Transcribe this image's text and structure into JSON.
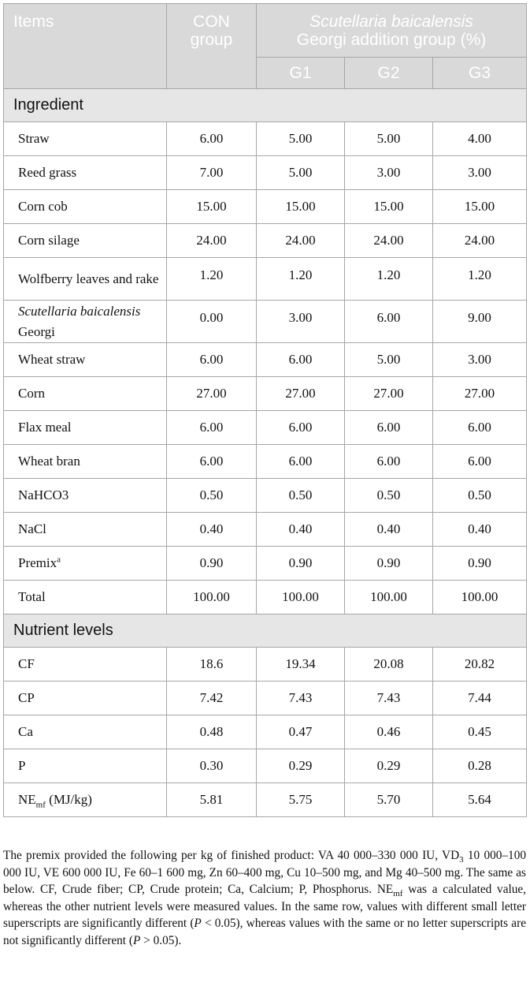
{
  "header": {
    "items": "Items",
    "con_group": "CON group",
    "addition_group_italic": "Scutellaria baicalensis",
    "addition_group_rest": "Georgi addition group (%)",
    "g1": "G1",
    "g2": "G2",
    "g3": "G3"
  },
  "sections": {
    "ingredient": "Ingredient",
    "nutrient": "Nutrient levels"
  },
  "ingredients": [
    {
      "label": "Straw",
      "values": [
        "6.00",
        "5.00",
        "5.00",
        "4.00"
      ]
    },
    {
      "label": "Reed grass",
      "values": [
        "7.00",
        "5.00",
        "3.00",
        "3.00"
      ]
    },
    {
      "label": "Corn cob",
      "values": [
        "15.00",
        "15.00",
        "15.00",
        "15.00"
      ]
    },
    {
      "label": "Corn silage",
      "values": [
        "24.00",
        "24.00",
        "24.00",
        "24.00"
      ]
    },
    {
      "label": "Wolfberry leaves and rake",
      "values": [
        "1.20",
        "1.20",
        "1.20",
        "1.20"
      ]
    },
    {
      "label_italic": "Scutellaria baicalensis",
      "label_rest": "Georgi",
      "values": [
        "0.00",
        "3.00",
        "6.00",
        "9.00"
      ]
    },
    {
      "label": "Wheat straw",
      "values": [
        "6.00",
        "6.00",
        "5.00",
        "3.00"
      ]
    },
    {
      "label": "Corn",
      "values": [
        "27.00",
        "27.00",
        "27.00",
        "27.00"
      ]
    },
    {
      "label": "Flax meal",
      "values": [
        "6.00",
        "6.00",
        "6.00",
        "6.00"
      ]
    },
    {
      "label": "Wheat bran",
      "values": [
        "6.00",
        "6.00",
        "6.00",
        "6.00"
      ]
    },
    {
      "label": "NaHCO3",
      "values": [
        "0.50",
        "0.50",
        "0.50",
        "0.50"
      ]
    },
    {
      "label": "NaCl",
      "values": [
        "0.40",
        "0.40",
        "0.40",
        "0.40"
      ]
    },
    {
      "label": "Premix",
      "sup": "a",
      "values": [
        "0.90",
        "0.90",
        "0.90",
        "0.90"
      ]
    },
    {
      "label": "Total",
      "values": [
        "100.00",
        "100.00",
        "100.00",
        "100.00"
      ]
    }
  ],
  "nutrients": [
    {
      "label": "CF",
      "values": [
        "18.6",
        "19.34",
        "20.08",
        "20.82"
      ]
    },
    {
      "label": "CP",
      "values": [
        "7.42",
        "7.43",
        "7.43",
        "7.44"
      ]
    },
    {
      "label": "Ca",
      "values": [
        "0.48",
        "0.47",
        "0.46",
        "0.45"
      ]
    },
    {
      "label": "P",
      "values": [
        "0.30",
        "0.29",
        "0.29",
        "0.28"
      ]
    },
    {
      "label": "NE",
      "sub": "mf",
      "label_after": " (MJ/kg)",
      "values": [
        "5.81",
        "5.75",
        "5.70",
        "5.64"
      ]
    }
  ],
  "footnote": {
    "p1": "The premix provided the following per kg of finished product: VA 40 000–330 000 IU, VD",
    "p1_sub": "3",
    "p2": " 10 000–100 000 IU, VE 600 000 IU, Fe 60–1 600 mg, Zn 60–400 mg, Cu 10–500 mg, and Mg 40–500 mg. The same as below. CF, Crude fiber; CP, Crude protein; Ca, Calcium; P, Phosphorus. NE",
    "p2_sub": "mf",
    "p3": " was a calculated value, whereas the other nutrient levels were measured values. In the same row, values with different small letter superscripts are significantly different (",
    "p3_italic": "P",
    "p4": " < 0.05), whereas values with the same or no letter superscripts are not significantly different (",
    "p4_italic": "P",
    "p5": " > 0.05)."
  }
}
